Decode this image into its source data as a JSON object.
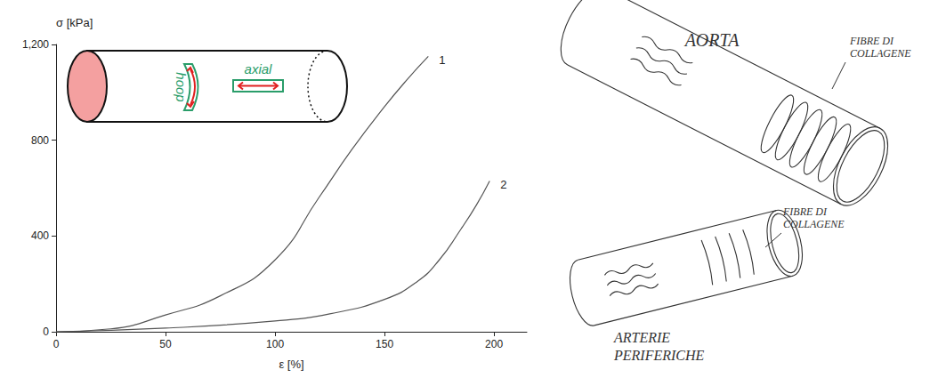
{
  "chart_data": {
    "type": "line",
    "x_label": "ε [%]",
    "y_label": "σ [kPa]",
    "xlim": [
      0,
      215
    ],
    "xticks": [
      0,
      50,
      100,
      150,
      200
    ],
    "ylim": [
      0,
      1200
    ],
    "yticks": [
      0,
      400,
      800,
      1200
    ],
    "grid": false,
    "series": [
      {
        "name": "1",
        "color": "#555555",
        "x": [
          0,
          25,
          50,
          75,
          100,
          120,
          135,
          150,
          160,
          170
        ],
        "values": [
          0,
          12,
          70,
          150,
          300,
          560,
          760,
          940,
          1050,
          1150
        ]
      },
      {
        "name": "2",
        "color": "#555555",
        "x": [
          0,
          50,
          100,
          125,
          150,
          165,
          175,
          185,
          192,
          198
        ],
        "values": [
          0,
          15,
          45,
          75,
          135,
          210,
          300,
          430,
          530,
          630
        ]
      }
    ]
  },
  "inset": {
    "hoop_label": "hoop",
    "axial_label": "axial"
  },
  "sketches": [
    {
      "title": "AORTA",
      "label": "FIBRE DI COLLAGENE"
    },
    {
      "title": "ARTERIE PERIFERICHE",
      "label": "FIBRE DI COLLAGENE"
    }
  ]
}
